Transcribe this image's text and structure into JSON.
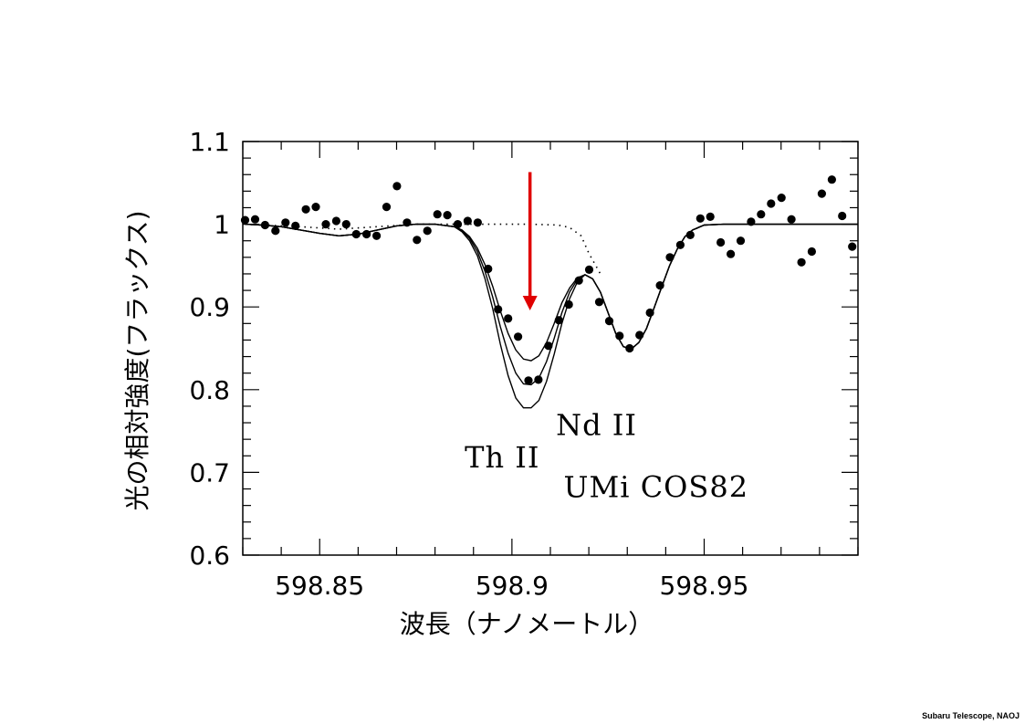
{
  "credit": "Subaru Telescope, NAOJ",
  "chart_data": {
    "type": "scatter",
    "title": "",
    "xlabel": "波長（ナノメートル）",
    "ylabel": "光の相対強度(フラックス)",
    "xlim": [
      598.83,
      598.99
    ],
    "ylim": [
      0.6,
      1.1
    ],
    "x_ticks": [
      598.85,
      598.9,
      598.95
    ],
    "x_tick_labels": [
      "598.85",
      "598.9",
      "598.95"
    ],
    "x_minor_step": 0.01,
    "y_ticks": [
      0.6,
      0.7,
      0.8,
      0.9,
      1.0,
      1.1
    ],
    "y_tick_labels": [
      "0.6",
      "0.7",
      "0.8",
      "0.9",
      "1",
      "1.1"
    ],
    "y_minor_step": 0.02,
    "grid": false,
    "annotations": [
      {
        "text": "Th II",
        "x": 598.8975,
        "y": 0.706
      },
      {
        "text": "Nd II",
        "x": 598.922,
        "y": 0.745
      },
      {
        "text": "UMi COS82",
        "x": 598.9375,
        "y": 0.67
      }
    ],
    "arrow": {
      "x": 598.9047,
      "y_from": 1.063,
      "y_to": 0.898,
      "color": "#e00000"
    },
    "series": [
      {
        "kind": "points",
        "x": [
          598.8306,
          598.8332,
          598.8358,
          598.8385,
          598.8411,
          598.8437,
          598.8464,
          598.849,
          598.8516,
          598.8543,
          598.8569,
          598.8595,
          598.8622,
          598.8648,
          598.8674,
          598.8701,
          598.8727,
          598.8753,
          598.878,
          598.8806,
          598.8832,
          598.8859,
          598.8885,
          598.8911,
          598.8938,
          598.8964,
          598.899,
          598.9016,
          598.9043,
          598.9069,
          598.9095,
          598.9122,
          598.9148,
          598.9174,
          598.9201,
          598.9227,
          598.9253,
          598.928,
          598.9306,
          598.9332,
          598.9359,
          598.9385,
          598.9411,
          598.9438,
          598.9464,
          598.949,
          598.9516,
          598.9543,
          598.9569,
          598.9595,
          598.9622,
          598.9648,
          598.9674,
          598.9701,
          598.9727,
          598.9753,
          598.978,
          598.9806,
          598.9832,
          598.9859,
          598.9885
        ],
        "y": [
          1.005,
          1.006,
          0.999,
          0.992,
          1.002,
          0.998,
          1.018,
          1.021,
          1.0,
          1.004,
          1.0,
          0.988,
          0.988,
          0.986,
          1.021,
          1.046,
          1.002,
          0.981,
          0.992,
          1.012,
          1.011,
          1.0,
          1.004,
          1.002,
          0.946,
          0.897,
          0.886,
          0.864,
          0.811,
          0.812,
          0.853,
          0.884,
          0.903,
          0.932,
          0.945,
          0.906,
          0.883,
          0.865,
          0.85,
          0.866,
          0.893,
          0.926,
          0.96,
          0.975,
          0.987,
          1.007,
          1.009,
          0.978,
          0.964,
          0.98,
          1.003,
          1.012,
          1.025,
          1.032,
          1.006,
          0.954,
          0.967,
          1.037,
          1.054,
          1.01,
          0.973
        ]
      },
      {
        "kind": "line",
        "style": "dotted",
        "x": [
          598.8306,
          598.845,
          598.855,
          598.865,
          598.875,
          598.885,
          598.895,
          598.905,
          598.912,
          598.915,
          598.918,
          598.92,
          598.923
        ],
        "y": [
          1.0,
          0.997,
          0.994,
          0.997,
          1.0,
          1.0,
          1.0,
          1.0,
          0.999,
          0.996,
          0.986,
          0.965,
          0.94
        ]
      },
      {
        "kind": "line",
        "style": "solid",
        "x": [
          598.8306,
          598.835,
          598.84,
          598.845,
          598.85,
          598.855,
          598.86,
          598.865,
          598.87,
          598.875,
          598.88,
          598.885,
          598.887,
          598.889,
          598.891,
          598.893,
          598.895,
          598.897,
          598.899,
          598.901,
          598.903,
          598.905,
          598.907,
          598.909,
          598.911,
          598.913,
          598.915,
          598.917,
          598.919,
          598.921,
          598.923,
          598.925,
          598.927,
          598.929,
          598.931,
          598.933,
          598.935,
          598.937,
          598.939,
          598.941,
          598.943,
          598.945,
          598.947,
          598.95,
          598.955,
          598.96,
          598.965,
          598.97,
          598.975,
          598.98,
          598.985,
          598.99
        ],
        "y": [
          1.0,
          0.999,
          0.997,
          0.993,
          0.989,
          0.986,
          0.988,
          0.993,
          0.998,
          1.0,
          1.0,
          0.997,
          0.993,
          0.985,
          0.971,
          0.951,
          0.925,
          0.895,
          0.868,
          0.848,
          0.837,
          0.835,
          0.841,
          0.857,
          0.88,
          0.905,
          0.923,
          0.935,
          0.939,
          0.934,
          0.918,
          0.893,
          0.868,
          0.852,
          0.849,
          0.857,
          0.874,
          0.899,
          0.925,
          0.95,
          0.97,
          0.985,
          0.993,
          0.999,
          1.0,
          1.0,
          1.0,
          1.0,
          1.0,
          1.0,
          1.0,
          1.0
        ]
      },
      {
        "kind": "line",
        "style": "solid",
        "x": [
          598.8306,
          598.835,
          598.84,
          598.845,
          598.85,
          598.855,
          598.86,
          598.865,
          598.87,
          598.875,
          598.88,
          598.885,
          598.887,
          598.889,
          598.891,
          598.893,
          598.895,
          598.897,
          598.899,
          598.901,
          598.903,
          598.905,
          598.907,
          598.909,
          598.911,
          598.913,
          598.915,
          598.917,
          598.919,
          598.921,
          598.923,
          598.925,
          598.927,
          598.929,
          598.931,
          598.933,
          598.935,
          598.937,
          598.939,
          598.941,
          598.943,
          598.945,
          598.947,
          598.95,
          598.955,
          598.96,
          598.965,
          598.97,
          598.975,
          598.98,
          598.985,
          598.99
        ],
        "y": [
          1.0,
          0.999,
          0.997,
          0.993,
          0.989,
          0.986,
          0.988,
          0.993,
          0.998,
          1.0,
          1.0,
          0.997,
          0.992,
          0.983,
          0.967,
          0.943,
          0.912,
          0.876,
          0.844,
          0.82,
          0.807,
          0.806,
          0.814,
          0.834,
          0.862,
          0.893,
          0.918,
          0.933,
          0.939,
          0.934,
          0.918,
          0.893,
          0.868,
          0.852,
          0.849,
          0.857,
          0.874,
          0.899,
          0.925,
          0.95,
          0.97,
          0.985,
          0.993,
          0.999,
          1.0,
          1.0,
          1.0,
          1.0,
          1.0,
          1.0,
          1.0,
          1.0
        ]
      },
      {
        "kind": "line",
        "style": "solid",
        "x": [
          598.8306,
          598.835,
          598.84,
          598.845,
          598.85,
          598.855,
          598.86,
          598.865,
          598.87,
          598.875,
          598.88,
          598.885,
          598.887,
          598.889,
          598.891,
          598.893,
          598.895,
          598.897,
          598.899,
          598.901,
          598.903,
          598.905,
          598.907,
          598.909,
          598.911,
          598.913,
          598.915,
          598.917,
          598.919,
          598.921,
          598.923,
          598.925,
          598.927,
          598.929,
          598.931,
          598.933,
          598.935,
          598.937,
          598.939,
          598.941,
          598.943,
          598.945,
          598.947,
          598.95,
          598.955,
          598.96,
          598.965,
          598.97,
          598.975,
          598.98,
          598.985,
          598.99
        ],
        "y": [
          1.0,
          0.999,
          0.997,
          0.993,
          0.989,
          0.986,
          0.988,
          0.993,
          0.998,
          1.0,
          1.0,
          0.997,
          0.991,
          0.98,
          0.962,
          0.934,
          0.898,
          0.855,
          0.817,
          0.79,
          0.778,
          0.778,
          0.787,
          0.81,
          0.843,
          0.88,
          0.91,
          0.93,
          0.939,
          0.934,
          0.918,
          0.893,
          0.868,
          0.852,
          0.849,
          0.857,
          0.874,
          0.899,
          0.925,
          0.95,
          0.97,
          0.985,
          0.993,
          0.999,
          1.0,
          1.0,
          1.0,
          1.0,
          1.0,
          1.0,
          1.0,
          1.0
        ]
      }
    ]
  }
}
